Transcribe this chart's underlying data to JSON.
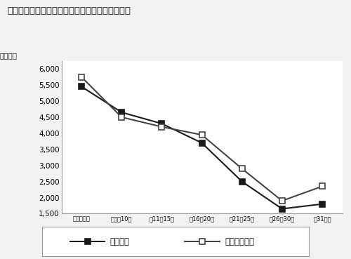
{
  "title": "図表６－１　中古マンションの築年帯別平均価格",
  "ylabel": "（万円）",
  "categories": [
    "築０～５年",
    "築６～10年",
    "築11～15年",
    "築16～20年",
    "築21～25年",
    "築26～30年",
    "築31年～"
  ],
  "series_1_name": "成約物件",
  "series_1_values": [
    5450,
    4650,
    4300,
    3700,
    2500,
    1650,
    1800
  ],
  "series_2_name": "新規登録物件",
  "series_2_values": [
    5750,
    4500,
    4200,
    3950,
    2900,
    1900,
    2350
  ],
  "ylim_min": 1500,
  "ylim_max": 6250,
  "yticks": [
    1500,
    2000,
    2500,
    3000,
    3500,
    4000,
    4500,
    5000,
    5500,
    6000
  ],
  "bg_color": "#e8e8e8",
  "plot_bg_color": "#ffffff",
  "outer_bg_color": "#f2f2f2",
  "line1_color": "#1a1a1a",
  "line2_color": "#444444",
  "marker1_fc": "#1a1a1a",
  "marker2_fc": "#ffffff",
  "line_width": 1.5,
  "marker_size": 6
}
